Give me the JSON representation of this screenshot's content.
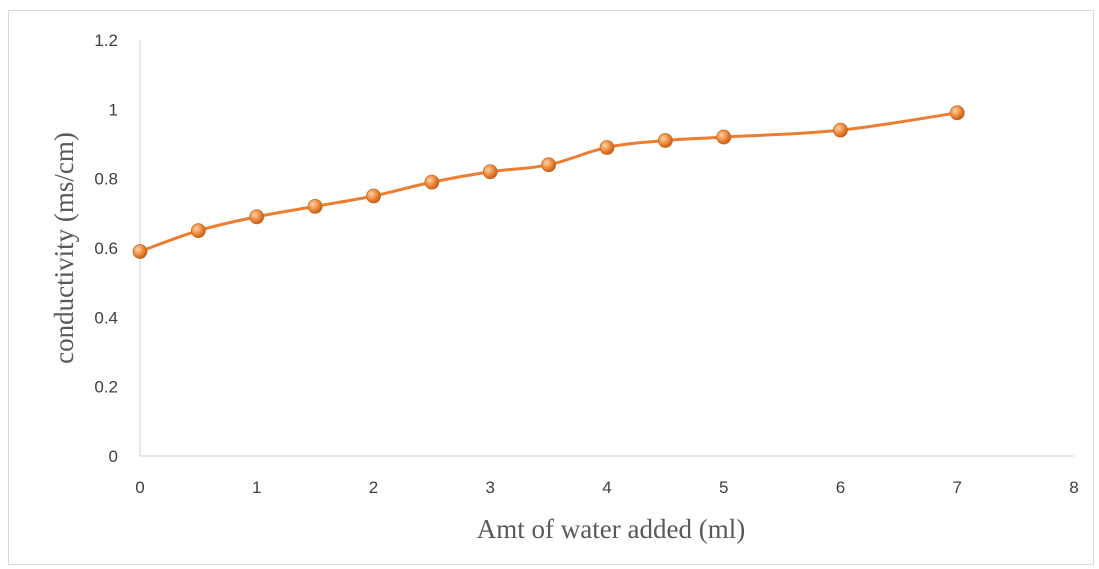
{
  "chart_data": {
    "type": "line",
    "title": "",
    "xlabel": "Amt of water added (ml)",
    "ylabel": "conductivity (ms/cm)",
    "xlim": [
      0,
      8
    ],
    "ylim": [
      0,
      1.2
    ],
    "xticks": [
      "0",
      "1",
      "2",
      "3",
      "4",
      "5",
      "6",
      "7",
      "8"
    ],
    "yticks": [
      "0",
      "0.2",
      "0.4",
      "0.6",
      "0.8",
      "1",
      "1.2"
    ],
    "grid": false,
    "legend": "none",
    "series": [
      {
        "color": "#ed7d31",
        "marker_color": "#f4a460",
        "x": [
          0,
          0.5,
          1,
          1.5,
          2,
          2.5,
          3,
          3.5,
          4,
          4.5,
          5,
          6,
          7
        ],
        "y": [
          0.59,
          0.65,
          0.69,
          0.72,
          0.75,
          0.79,
          0.82,
          0.84,
          0.89,
          0.91,
          0.92,
          0.94,
          0.99
        ]
      }
    ]
  }
}
